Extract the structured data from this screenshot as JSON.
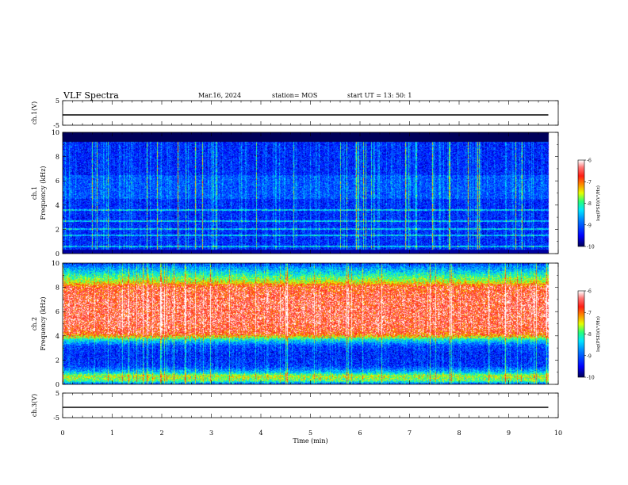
{
  "header": {
    "title": "VLF Spectra",
    "date": "Mar.16, 2024",
    "station": "station= MOS",
    "start": "start  UT  =   13: 50: 1"
  },
  "chart_data": [
    {
      "type": "line",
      "panel": "ch1",
      "ylabel": "ch.1(V)",
      "ylim": [
        -5,
        5
      ],
      "y_ticks": [
        "5",
        "-5"
      ],
      "x_range": [
        0,
        10
      ],
      "series": [
        {
          "x": [
            0,
            9.8
          ],
          "y": [
            0,
            0
          ]
        }
      ],
      "color": "#000000"
    },
    {
      "type": "heatmap",
      "panel": "ch1-spectrogram",
      "ylabel_line1": "ch.1",
      "ylabel_line2": "Frequency (kHz)",
      "ylim": [
        0,
        10
      ],
      "y_ticks": [
        "0",
        "2",
        "4",
        "6",
        "8",
        "10"
      ],
      "x_range": [
        0,
        10
      ],
      "data_end_min": 9.8,
      "colorbar": {
        "label": "log(PSD)(V²/Hz)",
        "range": [
          -10,
          -6
        ],
        "ticks": [
          "-6",
          "-7",
          "-8",
          "-9",
          "-10"
        ]
      },
      "background_level": -9.4,
      "bright_band_khz": [
        0.3,
        9.2
      ],
      "hum_lines_khz": [
        0.6,
        1.5,
        2.0,
        2.7,
        3.6
      ]
    },
    {
      "type": "heatmap",
      "panel": "ch2-spectrogram",
      "ylabel_line1": "ch.2",
      "ylabel_line2": "Frequency (kHz)",
      "ylim": [
        0,
        10
      ],
      "y_ticks": [
        "0",
        "2",
        "4",
        "6",
        "8",
        "10"
      ],
      "x_range": [
        0,
        10
      ],
      "data_end_min": 9.8,
      "colorbar": {
        "label": "log(PSD)(V²/Hz)",
        "range": [
          -10,
          -6
        ],
        "ticks": [
          "-6",
          "-7",
          "-8",
          "-9",
          "-10"
        ]
      },
      "profile_khz": [
        0,
        0.3,
        0.7,
        1.0,
        1.5,
        2.5,
        3.2,
        3.7,
        4.2,
        5.0,
        7.0,
        8.0,
        8.6,
        9.2,
        9.7,
        10
      ],
      "profile_level": [
        -9.2,
        -8.0,
        -7.7,
        -8.6,
        -9.3,
        -9.4,
        -9.2,
        -8.3,
        -7.0,
        -6.8,
        -6.8,
        -7.0,
        -7.8,
        -8.4,
        -8.9,
        -9.3
      ]
    },
    {
      "type": "line",
      "panel": "ch3",
      "ylabel": "ch.3(V)",
      "ylim": [
        -5,
        5
      ],
      "y_ticks": [
        "5",
        "-5"
      ],
      "x_range": [
        0,
        10
      ],
      "series": [
        {
          "x": [
            0,
            9.8
          ],
          "y": [
            0,
            0
          ]
        }
      ],
      "color": "#000000"
    }
  ],
  "xaxis": {
    "label": "Time  (min)",
    "ticks": [
      "0",
      "1",
      "2",
      "3",
      "4",
      "5",
      "6",
      "7",
      "8",
      "9",
      "10"
    ]
  },
  "colors": {
    "colormap": [
      "#000080",
      "#0000ff",
      "#0080ff",
      "#00e0ff",
      "#00ff80",
      "#ffff00",
      "#ff8000",
      "#ff0000",
      "#ffffff"
    ]
  }
}
